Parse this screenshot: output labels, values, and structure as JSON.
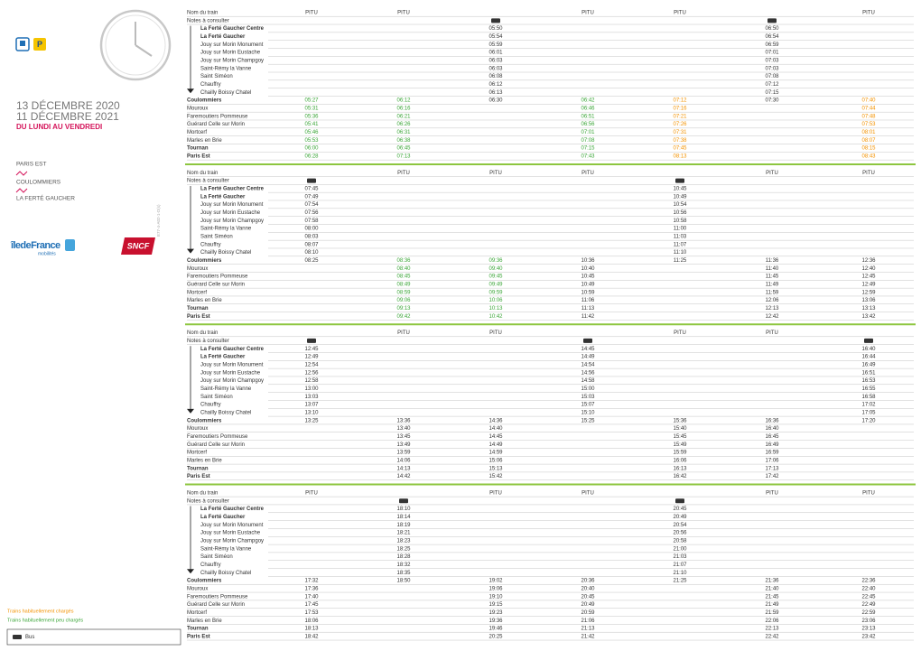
{
  "left": {
    "date_from": "13 DÉCEMBRE 2020",
    "date_to": "11 DÉCEMBRE 2021",
    "days": "DU LUNDI AU VENDREDI",
    "line_stops": [
      "PARIS EST",
      "COULOMMIERS",
      "LA FERTÉ GAUCHER"
    ],
    "ref": "E77-4-A02-1-D(s)",
    "logo_idf": "îledeFrance",
    "logo_idf_sub": "mobilités",
    "logo_sncf": "SNCF"
  },
  "row_labels": {
    "train": "Nom du train",
    "notes": "Notes à consulter"
  },
  "stations": [
    "La Ferté Gaucher Centre",
    "La Ferté Gaucher",
    "Jouy sur Morin Monument",
    "Jouy sur Morin Eustache",
    "Jouy sur Morin Champgoy",
    "Saint-Rémy la Vanne",
    "Saint Siméon",
    "Chauffry",
    "Chailly Boissy Chatel",
    "Coulommiers",
    "Mouroux",
    "Faremoutiers Pommeuse",
    "Guérard Celle sur Morin",
    "Mortcerf",
    "Marles en Brie",
    "Tournan",
    "Paris Est"
  ],
  "bold_stations": [
    0,
    1,
    9,
    15,
    16
  ],
  "colors": {
    "high": "#f39200",
    "low": "#3aa537"
  },
  "blocks": [
    {
      "columns": [
        {
          "header": "PITU",
          "bus": false,
          "load": "low",
          "times": [
            null,
            null,
            null,
            null,
            null,
            null,
            null,
            null,
            null,
            "05:27",
            "05:31",
            "05:36",
            "05:41",
            "05:46",
            "05:53",
            "06:00",
            "06:28"
          ]
        },
        {
          "header": "PITU",
          "bus": false,
          "load": "low",
          "times": [
            null,
            null,
            null,
            null,
            null,
            null,
            null,
            null,
            null,
            "06:12",
            "06:16",
            "06:21",
            "06:26",
            "06:31",
            "06:38",
            "06:45",
            "07:13"
          ]
        },
        {
          "header": null,
          "bus": true,
          "load": null,
          "times": [
            "05:50",
            "05:54",
            "05:59",
            "06:01",
            "06:03",
            "06:03",
            "06:08",
            "06:12",
            "06:13",
            "06:30",
            null,
            null,
            null,
            null,
            null,
            null,
            null
          ]
        },
        {
          "header": "PITU",
          "bus": false,
          "load": "low",
          "times": [
            null,
            null,
            null,
            null,
            null,
            null,
            null,
            null,
            null,
            "06:42",
            "06:46",
            "06:51",
            "06:56",
            "07:01",
            "07:08",
            "07:15",
            "07:43"
          ]
        },
        {
          "header": "PITU",
          "bus": false,
          "load": "high",
          "times": [
            null,
            null,
            null,
            null,
            null,
            null,
            null,
            null,
            null,
            "07:12",
            "07:16",
            "07:21",
            "07:26",
            "07:31",
            "07:38",
            "07:45",
            "08:13"
          ]
        },
        {
          "header": null,
          "bus": true,
          "load": null,
          "times": [
            "06:50",
            "06:54",
            "06:59",
            "07:01",
            "07:03",
            "07:03",
            "07:08",
            "07:12",
            "07:15",
            "07:30",
            null,
            null,
            null,
            null,
            null,
            null,
            null
          ]
        },
        {
          "header": "PITU",
          "bus": false,
          "load": "high",
          "times": [
            null,
            null,
            null,
            null,
            null,
            null,
            null,
            null,
            null,
            "07:40",
            "07:44",
            "07:48",
            "07:53",
            "08:01",
            "08:07",
            "08:15",
            "08:43"
          ]
        }
      ]
    },
    {
      "columns": [
        {
          "header": null,
          "bus": true,
          "load": null,
          "times": [
            "07:45",
            "07:49",
            "07:54",
            "07:56",
            "07:58",
            "08:00",
            "08:03",
            "08:07",
            "08:10",
            "08:25",
            null,
            null,
            null,
            null,
            null,
            null,
            null
          ]
        },
        {
          "header": "PITU",
          "bus": false,
          "load": "low",
          "times": [
            null,
            null,
            null,
            null,
            null,
            null,
            null,
            null,
            null,
            "08:36",
            "08:40",
            "08:45",
            "08:49",
            "08:59",
            "09:06",
            "09:13",
            "09:42"
          ]
        },
        {
          "header": "PITU",
          "bus": false,
          "load": "low",
          "times": [
            null,
            null,
            null,
            null,
            null,
            null,
            null,
            null,
            null,
            "09:36",
            "09:40",
            "09:45",
            "09:49",
            "09:59",
            "10:06",
            "10:13",
            "10:42"
          ]
        },
        {
          "header": "PITU",
          "bus": false,
          "load": null,
          "times": [
            null,
            null,
            null,
            null,
            null,
            null,
            null,
            null,
            null,
            "10:36",
            "10:40",
            "10:45",
            "10:49",
            "10:59",
            "11:06",
            "11:13",
            "11:42"
          ]
        },
        {
          "header": null,
          "bus": true,
          "load": null,
          "times": [
            "10:45",
            "10:49",
            "10:54",
            "10:56",
            "10:58",
            "11:00",
            "11:03",
            "11:07",
            "11:10",
            "11:25",
            null,
            null,
            null,
            null,
            null,
            null,
            null
          ]
        },
        {
          "header": "PITU",
          "bus": false,
          "load": null,
          "times": [
            null,
            null,
            null,
            null,
            null,
            null,
            null,
            null,
            null,
            "11:36",
            "11:40",
            "11:45",
            "11:49",
            "11:59",
            "12:06",
            "12:13",
            "12:42"
          ]
        },
        {
          "header": "PITU",
          "bus": false,
          "load": null,
          "times": [
            null,
            null,
            null,
            null,
            null,
            null,
            null,
            null,
            null,
            "12:36",
            "12:40",
            "12:45",
            "12:49",
            "12:59",
            "13:06",
            "13:13",
            "13:42"
          ]
        }
      ]
    },
    {
      "columns": [
        {
          "header": null,
          "bus": true,
          "load": null,
          "times": [
            "12:45",
            "12:49",
            "12:54",
            "12:56",
            "12:58",
            "13:00",
            "13:03",
            "13:07",
            "13:10",
            "13:25",
            null,
            null,
            null,
            null,
            null,
            null,
            null
          ]
        },
        {
          "header": "PITU",
          "bus": false,
          "load": null,
          "times": [
            null,
            null,
            null,
            null,
            null,
            null,
            null,
            null,
            null,
            "13:36",
            "13:40",
            "13:45",
            "13:49",
            "13:59",
            "14:06",
            "14:13",
            "14:42"
          ]
        },
        {
          "header": "PITU",
          "bus": false,
          "load": null,
          "times": [
            null,
            null,
            null,
            null,
            null,
            null,
            null,
            null,
            null,
            "14:36",
            "14:40",
            "14:45",
            "14:49",
            "14:59",
            "15:06",
            "15:13",
            "15:42"
          ]
        },
        {
          "header": null,
          "bus": true,
          "load": null,
          "times": [
            "14:45",
            "14:49",
            "14:54",
            "14:56",
            "14:58",
            "15:00",
            "15:03",
            "15:07",
            "15:10",
            "15:25",
            null,
            null,
            null,
            null,
            null,
            null,
            null
          ]
        },
        {
          "header": "PITU",
          "bus": false,
          "load": null,
          "times": [
            null,
            null,
            null,
            null,
            null,
            null,
            null,
            null,
            null,
            "15:36",
            "15:40",
            "15:45",
            "15:49",
            "15:59",
            "16:06",
            "16:13",
            "16:42"
          ]
        },
        {
          "header": "PITU",
          "bus": false,
          "load": null,
          "times": [
            null,
            null,
            null,
            null,
            null,
            null,
            null,
            null,
            null,
            "16:36",
            "16:40",
            "16:45",
            "16:49",
            "16:59",
            "17:06",
            "17:13",
            "17:42"
          ]
        },
        {
          "header": null,
          "bus": true,
          "load": null,
          "times": [
            "16:40",
            "16:44",
            "16:49",
            "16:51",
            "16:53",
            "16:55",
            "16:58",
            "17:02",
            "17:05",
            "17:20",
            null,
            null,
            null,
            null,
            null,
            null,
            null
          ]
        }
      ]
    },
    {
      "columns": [
        {
          "header": "PITU",
          "bus": false,
          "load": null,
          "times": [
            null,
            null,
            null,
            null,
            null,
            null,
            null,
            null,
            null,
            "17:32",
            "17:36",
            "17:40",
            "17:45",
            "17:53",
            "18:06",
            "18:13",
            "18:42"
          ]
        },
        {
          "header": null,
          "bus": true,
          "load": null,
          "times": [
            "18:10",
            "18:14",
            "18:19",
            "18:21",
            "18:23",
            "18:25",
            "18:28",
            "18:32",
            "18:35",
            "18:50",
            null,
            null,
            null,
            null,
            null,
            null,
            null
          ]
        },
        {
          "header": "PITU",
          "bus": false,
          "load": null,
          "times": [
            null,
            null,
            null,
            null,
            null,
            null,
            null,
            null,
            null,
            "19:02",
            "19:06",
            "19:10",
            "19:15",
            "19:23",
            "19:36",
            "19:46",
            "20:25"
          ]
        },
        {
          "header": "PITU",
          "bus": false,
          "load": null,
          "times": [
            null,
            null,
            null,
            null,
            null,
            null,
            null,
            null,
            null,
            "20:36",
            "20:40",
            "20:45",
            "20:49",
            "20:59",
            "21:06",
            "21:13",
            "21:42"
          ]
        },
        {
          "header": null,
          "bus": true,
          "load": null,
          "times": [
            "20:45",
            "20:49",
            "20:54",
            "20:56",
            "20:58",
            "21:00",
            "21:03",
            "21:07",
            "21:10",
            "21:25",
            null,
            null,
            null,
            null,
            null,
            null,
            null
          ]
        },
        {
          "header": "PITU",
          "bus": false,
          "load": null,
          "times": [
            null,
            null,
            null,
            null,
            null,
            null,
            null,
            null,
            null,
            "21:36",
            "21:40",
            "21:45",
            "21:49",
            "21:59",
            "22:06",
            "22:13",
            "22:42"
          ]
        },
        {
          "header": "PITU",
          "bus": false,
          "load": null,
          "times": [
            null,
            null,
            null,
            null,
            null,
            null,
            null,
            null,
            null,
            "22:36",
            "22:40",
            "22:45",
            "22:49",
            "22:59",
            "23:06",
            "23:13",
            "23:42"
          ]
        }
      ]
    }
  ],
  "legend": {
    "high": "Trains habituellement chargés",
    "low": "Trains habituellement peu chargés",
    "bus": "Bus"
  }
}
